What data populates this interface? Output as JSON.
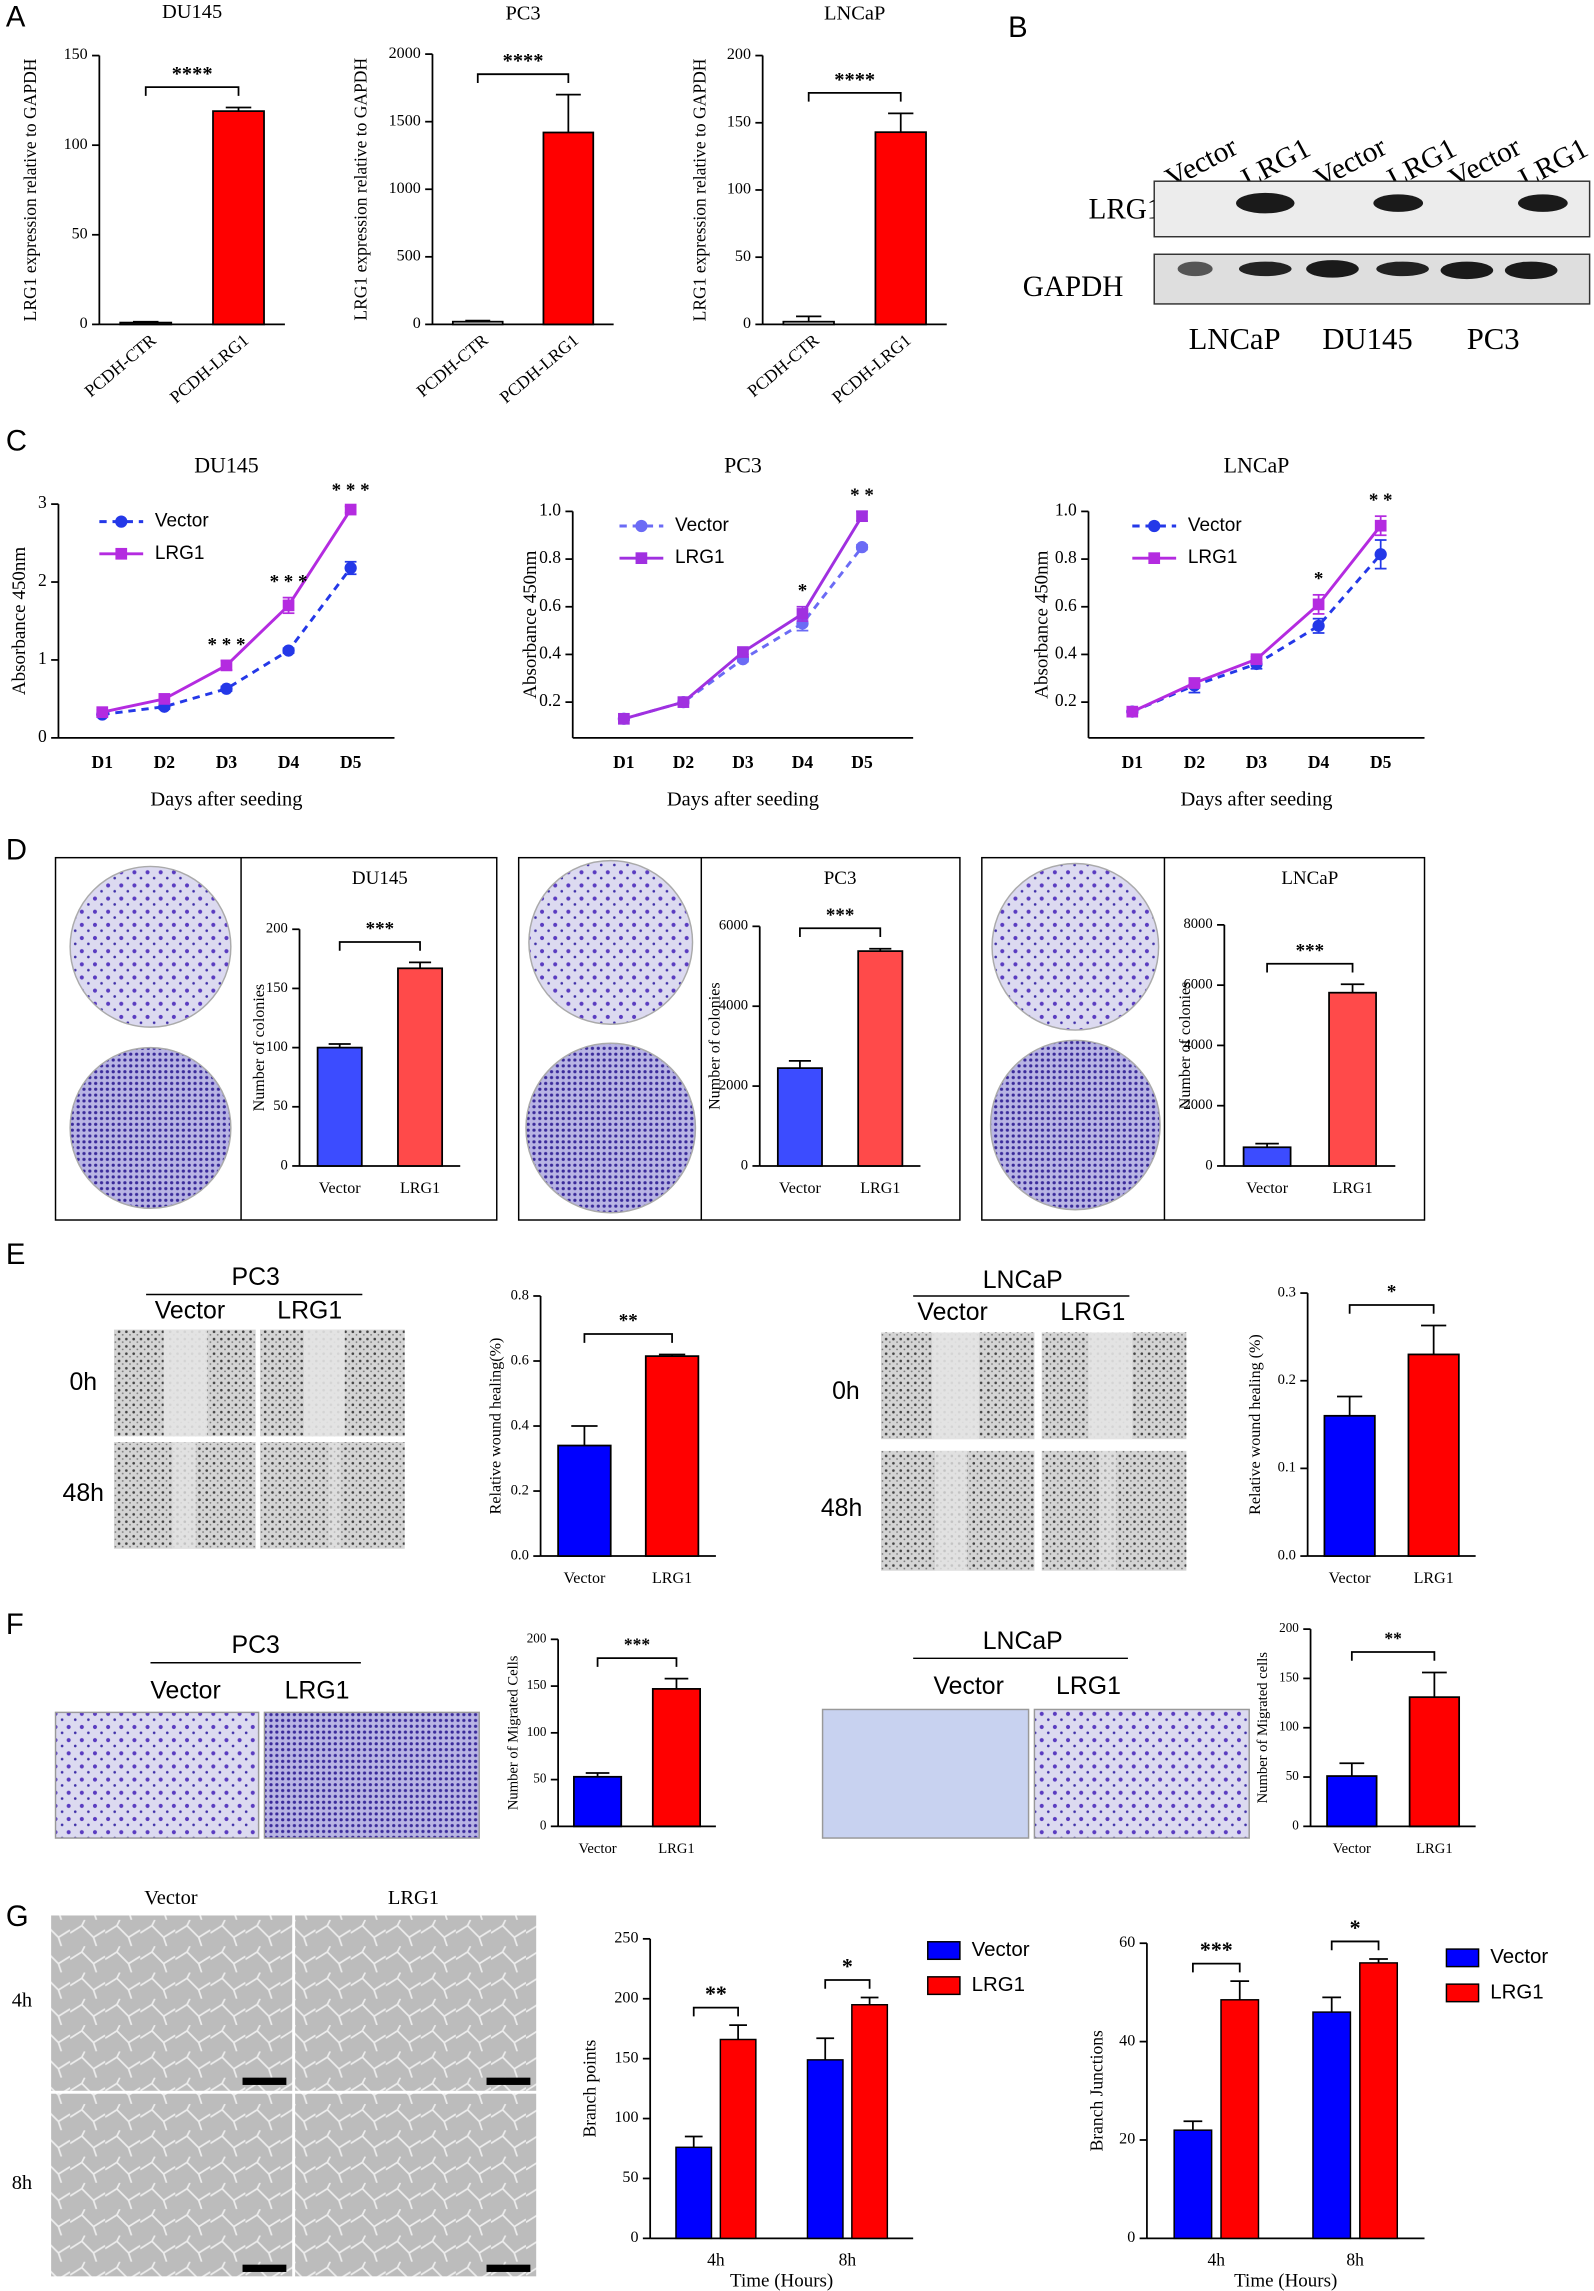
{
  "figure": {
    "panels": [
      "A",
      "B",
      "C",
      "D",
      "E",
      "F",
      "G"
    ],
    "blot": {
      "lanes": [
        "Vector",
        "LRG1",
        "Vector",
        "LRG1",
        "Vector",
        "LRG1"
      ],
      "rows": [
        "LRG1",
        "GAPDH"
      ],
      "cell_lines": [
        "LNCaP",
        "DU145",
        "PC3"
      ]
    },
    "wound": [
      {
        "cell_line": "PC3",
        "columns": [
          "Vector",
          "LRG1"
        ],
        "rows": [
          "0h",
          "48h"
        ]
      },
      {
        "cell_line": "LNCaP",
        "columns": [
          "Vector",
          "LRG1"
        ],
        "rows": [
          "0h",
          "48h"
        ]
      }
    ],
    "migration": [
      {
        "cell_line": "PC3",
        "columns": [
          "Vector",
          "LRG1"
        ]
      },
      {
        "cell_line": "LNCaP",
        "columns": [
          "Vector",
          "LRG1"
        ]
      }
    ],
    "tube": {
      "columns": [
        "Vector",
        "LRG1"
      ],
      "rows": [
        "4h",
        "8h"
      ]
    }
  },
  "chart_data": [
    {
      "type": "bar",
      "title": "DU145",
      "categories": [
        "PCDH-CTR",
        "PCDH-LRG1"
      ],
      "values": [
        1,
        119
      ],
      "errors": [
        0.5,
        2
      ],
      "colors": [
        "#ffffff",
        "#ff0000"
      ],
      "ylabel": "LRG1 expression relative to GAPDH",
      "ylim": [
        0,
        150
      ],
      "yticks": [
        0,
        50,
        100,
        150
      ],
      "significance": "****"
    },
    {
      "type": "bar",
      "title": "PC3",
      "categories": [
        "PCDH-CTR",
        "PCDH-LRG1"
      ],
      "values": [
        20,
        1420
      ],
      "errors": [
        8,
        280
      ],
      "colors": [
        "#ffffff",
        "#ff0000"
      ],
      "ylabel": "LRG1 expression relative to GAPDH",
      "ylim": [
        0,
        2000
      ],
      "yticks": [
        0,
        500,
        1000,
        1500,
        2000
      ],
      "significance": "****"
    },
    {
      "type": "bar",
      "title": "LNCaP",
      "categories": [
        "PCDH-CTR",
        "PCDH-LRG1"
      ],
      "values": [
        2,
        143
      ],
      "errors": [
        4,
        14
      ],
      "colors": [
        "#ffffff",
        "#ff0000"
      ],
      "ylabel": "LRG1 expression relative to GAPDH",
      "ylim": [
        0,
        200
      ],
      "yticks": [
        0,
        50,
        100,
        150,
        200
      ],
      "significance": "****"
    },
    {
      "type": "line",
      "title": "DU145",
      "xlabel": "Days after seeding",
      "ylabel": "Absorbance 450nm",
      "categories": [
        "D1",
        "D2",
        "D3",
        "D4",
        "D5"
      ],
      "series": [
        {
          "name": "Vector",
          "color": "#2438e8",
          "line_style": "dashed",
          "marker": "circle",
          "values": [
            0.3,
            0.4,
            0.63,
            1.12,
            2.18
          ],
          "errors": [
            0.03,
            0.03,
            0.03,
            0.03,
            0.08
          ]
        },
        {
          "name": "LRG1",
          "color": "#b42be0",
          "line_style": "solid",
          "marker": "square",
          "values": [
            0.33,
            0.5,
            0.93,
            1.7,
            2.93
          ],
          "errors": [
            0.03,
            0.03,
            0.06,
            0.1,
            0.04
          ]
        }
      ],
      "ylim": [
        0,
        3
      ],
      "yticks": [
        0,
        1,
        2,
        3
      ],
      "annotations": [
        null,
        null,
        "* * *",
        "* * *",
        "* * *"
      ]
    },
    {
      "type": "line",
      "title": "PC3",
      "xlabel": "Days after seeding",
      "ylabel": "Absorbance 450nm",
      "categories": [
        "D1",
        "D2",
        "D3",
        "D4",
        "D5"
      ],
      "series": [
        {
          "name": "Vector",
          "color": "#6b6bf5",
          "line_style": "dashed",
          "marker": "circle",
          "values": [
            0.13,
            0.2,
            0.38,
            0.53,
            0.85
          ],
          "errors": [
            0.005,
            0.005,
            0.01,
            0.03,
            0.01
          ]
        },
        {
          "name": "LRG1",
          "color": "#a030e0",
          "line_style": "solid",
          "marker": "square",
          "values": [
            0.13,
            0.2,
            0.41,
            0.57,
            0.98
          ],
          "errors": [
            0.005,
            0.005,
            0.01,
            0.03,
            0.02
          ]
        }
      ],
      "ylim": [
        0.05,
        1.0
      ],
      "yticks": [
        0.2,
        0.4,
        0.6,
        0.8,
        {
          "value": 1.0,
          "label": "1.0"
        }
      ],
      "annotations": [
        null,
        null,
        null,
        "*",
        "* *"
      ]
    },
    {
      "type": "line",
      "title": "LNCaP",
      "xlabel": "Days after seeding",
      "ylabel": "Absorbance 450nm",
      "categories": [
        "D1",
        "D2",
        "D3",
        "D4",
        "D5"
      ],
      "series": [
        {
          "name": "Vector",
          "color": "#2438e8",
          "line_style": "dashed",
          "marker": "circle",
          "values": [
            0.16,
            0.27,
            0.36,
            0.52,
            0.82
          ],
          "errors": [
            0.005,
            0.03,
            0.02,
            0.03,
            0.06
          ]
        },
        {
          "name": "LRG1",
          "color": "#b42be0",
          "line_style": "solid",
          "marker": "square",
          "values": [
            0.16,
            0.28,
            0.38,
            0.61,
            0.94
          ],
          "errors": [
            0.005,
            0.01,
            0.01,
            0.04,
            0.04
          ]
        }
      ],
      "ylim": [
        0.05,
        1.0
      ],
      "yticks": [
        0.2,
        0.4,
        0.6,
        0.8,
        {
          "value": 1.0,
          "label": "1.0"
        }
      ],
      "annotations": [
        null,
        null,
        null,
        "*",
        "* *"
      ]
    },
    {
      "type": "bar",
      "title": "DU145",
      "categories": [
        "Vector",
        "LRG1"
      ],
      "values": [
        100,
        167
      ],
      "errors": [
        3,
        5
      ],
      "colors": [
        "#3c4cff",
        "#ff4a4a"
      ],
      "ylabel": "Number of colonies",
      "ylim": [
        0,
        200
      ],
      "yticks": [
        0,
        50,
        100,
        150,
        200
      ],
      "significance": "***"
    },
    {
      "type": "bar",
      "title": "PC3",
      "categories": [
        "Vector",
        "LRG1"
      ],
      "values": [
        2450,
        5380
      ],
      "errors": [
        180,
        60
      ],
      "colors": [
        "#3c4cff",
        "#ff4a4a"
      ],
      "ylabel": "Number of colonies",
      "ylim": [
        0,
        6000
      ],
      "yticks": [
        0,
        2000,
        4000,
        6000
      ],
      "significance": "***"
    },
    {
      "type": "bar",
      "title": "LNCaP",
      "categories": [
        "Vector",
        "LRG1"
      ],
      "values": [
        620,
        5750
      ],
      "errors": [
        120,
        280
      ],
      "colors": [
        "#3c4cff",
        "#ff4a4a"
      ],
      "ylabel": "Number of colonies",
      "ylim": [
        0,
        8000
      ],
      "yticks": [
        0,
        2000,
        4000,
        6000,
        8000
      ],
      "significance": "***"
    },
    {
      "type": "bar",
      "categories": [
        "Vector",
        "LRG1"
      ],
      "values": [
        0.34,
        0.615
      ],
      "errors": [
        0.06,
        0.005
      ],
      "colors": [
        "#0000ff",
        "#ff0000"
      ],
      "ylabel": "Relative wound healing(%)",
      "ylim": [
        0,
        0.8
      ],
      "yticks": [
        {
          "value": 0,
          "label": "0.0"
        },
        0.2,
        0.4,
        0.6,
        0.8
      ],
      "significance": "**"
    },
    {
      "type": "bar",
      "categories": [
        "Vector",
        "LRG1"
      ],
      "values": [
        0.16,
        0.23
      ],
      "errors": [
        0.022,
        0.033
      ],
      "colors": [
        "#0000ff",
        "#ff0000"
      ],
      "ylabel": "Relative wound healing (%)",
      "ylim": [
        0,
        0.3
      ],
      "yticks": [
        {
          "value": 0,
          "label": "0.0"
        },
        0.1,
        0.2,
        0.3
      ],
      "significance": "*"
    },
    {
      "type": "bar",
      "categories": [
        "Vector",
        "LRG1"
      ],
      "values": [
        53,
        147
      ],
      "errors": [
        4,
        11
      ],
      "colors": [
        "#0000ff",
        "#ff0000"
      ],
      "ylabel": "Number of Migrated Cells",
      "ylim": [
        0,
        200
      ],
      "yticks": [
        0,
        50,
        100,
        150,
        200
      ],
      "significance": "***"
    },
    {
      "type": "bar",
      "categories": [
        "Vector",
        "LRG1"
      ],
      "values": [
        51,
        131
      ],
      "errors": [
        13,
        25
      ],
      "colors": [
        "#0000ff",
        "#ff0000"
      ],
      "ylabel": "Number of Migrated cells",
      "ylim": [
        0,
        200
      ],
      "yticks": [
        0,
        50,
        100,
        150,
        200
      ],
      "significance": "**"
    },
    {
      "type": "bar",
      "categories": [
        "4h",
        "8h"
      ],
      "series": [
        {
          "name": "Vector",
          "color": "#0000ff",
          "values": [
            76,
            149
          ],
          "errors": [
            9,
            18
          ]
        },
        {
          "name": "LRG1",
          "color": "#ff0000",
          "values": [
            166,
            195
          ],
          "errors": [
            12,
            6
          ]
        }
      ],
      "ylabel": "Branch points",
      "xlabel": "Time (Hours)",
      "ylim": [
        0,
        250
      ],
      "yticks": [
        0,
        50,
        100,
        150,
        200,
        250
      ],
      "annotations": [
        "**",
        "*"
      ]
    },
    {
      "type": "bar",
      "categories": [
        "4h",
        "8h"
      ],
      "series": [
        {
          "name": "Vector",
          "color": "#0000ff",
          "values": [
            22,
            46
          ],
          "errors": [
            1.8,
            3
          ]
        },
        {
          "name": "LRG1",
          "color": "#ff0000",
          "values": [
            48.5,
            56
          ],
          "errors": [
            3.8,
            0.8
          ]
        }
      ],
      "ylabel": "Branch Junctions",
      "xlabel": "Time (Hours)",
      "ylim": [
        0,
        60
      ],
      "yticks": [
        0,
        20,
        40,
        60
      ],
      "annotations": [
        "***",
        "*"
      ]
    }
  ]
}
